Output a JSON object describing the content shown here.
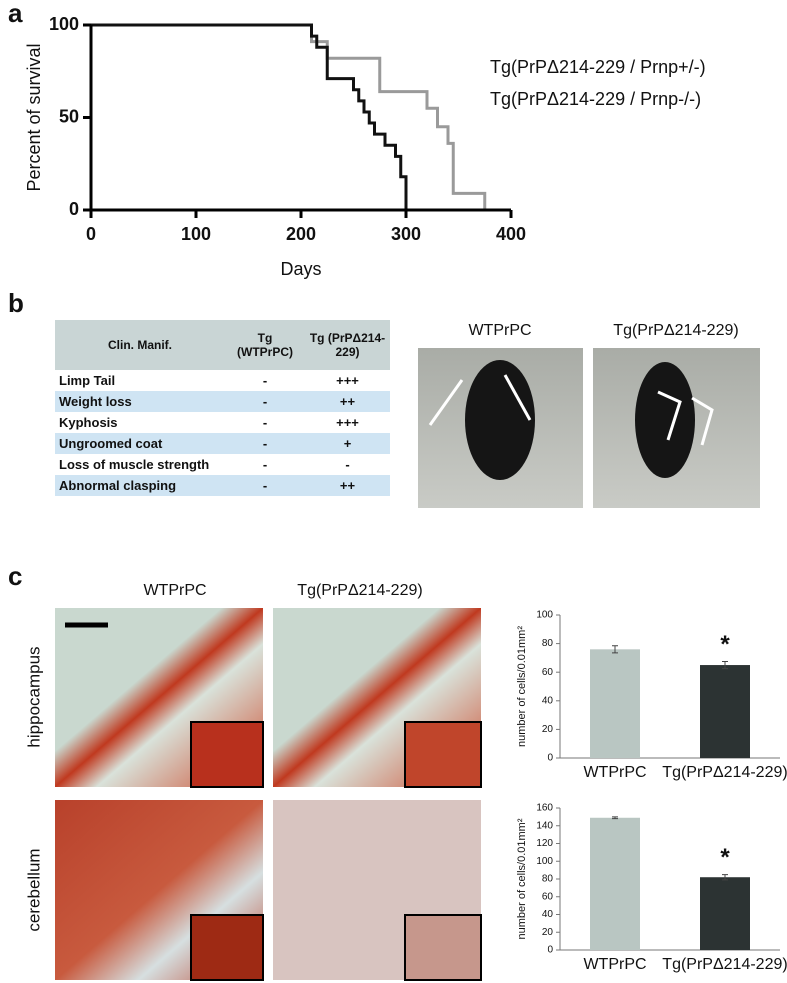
{
  "panel_labels": [
    "a",
    "b",
    "c"
  ],
  "chart_data": [
    {
      "type": "line",
      "x_label": "Days",
      "y_label": "Percent of survival",
      "xlim": [
        0,
        400
      ],
      "ylim": [
        0,
        100
      ],
      "xticks": [
        0,
        100,
        200,
        300,
        400
      ],
      "yticks": [
        0,
        50,
        100
      ],
      "series": [
        {
          "name": "Tg(PrPΔ214-229 / Prnp+/-)",
          "color": "#9a9a9a",
          "x": [
            0,
            210,
            210,
            225,
            225,
            275,
            275,
            320,
            320,
            330,
            330,
            340,
            340,
            345,
            345,
            375,
            375
          ],
          "values": [
            100,
            100,
            91,
            91,
            82,
            82,
            64,
            64,
            55,
            55,
            45,
            45,
            36,
            36,
            9,
            9,
            0
          ]
        },
        {
          "name": "Tg(PrPΔ214-229 / Prnp-/-)",
          "color": "#111111",
          "x": [
            0,
            210,
            210,
            215,
            215,
            225,
            225,
            250,
            250,
            255,
            255,
            260,
            260,
            265,
            265,
            270,
            270,
            280,
            280,
            290,
            290,
            295,
            295,
            300,
            300
          ],
          "values": [
            100,
            100,
            94,
            94,
            88,
            88,
            71,
            71,
            65,
            65,
            59,
            59,
            53,
            53,
            47,
            47,
            41,
            41,
            35,
            35,
            29,
            29,
            18,
            18,
            0
          ]
        }
      ]
    },
    {
      "type": "bar",
      "y_label": "number of cells/0.01mm²",
      "categories": [
        "WTPrPC",
        "Tg(PrPΔ214-229)"
      ],
      "values": [
        76,
        65
      ],
      "errors": [
        2.5,
        2.5
      ],
      "colors": [
        "#b9c6c2",
        "#2c3333"
      ],
      "ylim": [
        0,
        100
      ],
      "yticks": [
        0,
        20,
        40,
        60,
        80,
        100
      ],
      "annotation": "*"
    },
    {
      "type": "bar",
      "y_label": "number of cells/0.01mm²",
      "categories": [
        "WTPrPC",
        "Tg(PrPΔ214-229)"
      ],
      "values": [
        149,
        82
      ],
      "errors": [
        1,
        3
      ],
      "colors": [
        "#b9c6c2",
        "#2c3333"
      ],
      "ylim": [
        0,
        160
      ],
      "yticks": [
        0,
        20,
        40,
        60,
        80,
        100,
        120,
        140,
        160
      ],
      "annotation": "*"
    }
  ],
  "table": {
    "header": [
      "Clin. Manif.",
      "Tg (WTPrPC)",
      "Tg (PrPΔ214-229)"
    ],
    "rows": [
      [
        "Limp Tail",
        "-",
        "+++"
      ],
      [
        "Weight loss",
        "-",
        "++"
      ],
      [
        "Kyphosis",
        "-",
        "+++"
      ],
      [
        "Ungroomed coat",
        "-",
        "+"
      ],
      [
        "Loss of muscle strength",
        "-",
        "-"
      ],
      [
        "Abnormal clasping",
        "-",
        "++"
      ]
    ]
  },
  "photos": {
    "labels": [
      "WTPrPC",
      "Tg(PrPΔ214-229)"
    ]
  },
  "histology": {
    "columns": [
      "WTPrPC",
      "Tg(PrPΔ214-229)"
    ],
    "rows": [
      "hippocampus",
      "cerebellum"
    ]
  }
}
